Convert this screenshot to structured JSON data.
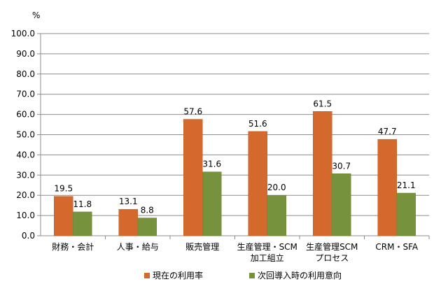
{
  "chart_data": {
    "type": "bar",
    "unit": "%",
    "categories": [
      [
        "財務・会計"
      ],
      [
        "人事・給与"
      ],
      [
        "販売管理"
      ],
      [
        "生産管理・SCM",
        "加工組立"
      ],
      [
        "生産管理SCM",
        "プロセス"
      ],
      [
        "CRM・SFA"
      ]
    ],
    "series": [
      {
        "name": "現在の利用率",
        "color": "#D4692D",
        "values": [
          19.5,
          13.1,
          57.6,
          51.6,
          61.5,
          47.7
        ],
        "labels": [
          "19.5",
          "13.1",
          "57.6",
          "51.6",
          "61.5",
          "47.7"
        ]
      },
      {
        "name": "次回導入時の利用意向",
        "color": "#76923C",
        "values": [
          11.8,
          8.8,
          31.6,
          20.0,
          30.7,
          21.1
        ],
        "labels": [
          "11.8",
          "8.8",
          "31.6",
          "20.0",
          "30.7",
          "21.1"
        ]
      }
    ],
    "ylim": [
      0,
      100
    ],
    "yticks": [
      "0.0",
      "10.0",
      "20.0",
      "30.0",
      "40.0",
      "50.0",
      "60.0",
      "70.0",
      "80.0",
      "90.0",
      "100.0"
    ],
    "grid": true,
    "legend": "bottom"
  }
}
